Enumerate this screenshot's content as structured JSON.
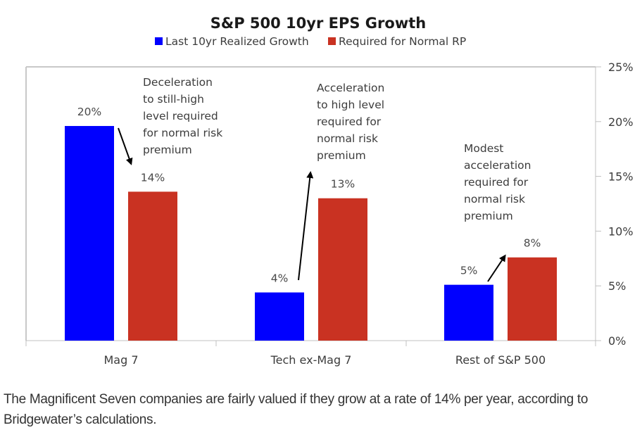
{
  "chart_data": {
    "type": "bar",
    "title": "S&P 500 10yr EPS Growth",
    "xlabel": "",
    "ylabel": "",
    "categories": [
      "Mag 7",
      "Tech ex-Mag 7",
      "Rest of S&P 500"
    ],
    "series": [
      {
        "name": "Last 10yr Realized Growth",
        "color": "#0000ff",
        "values": [
          19.6,
          4.4,
          5.1
        ],
        "labels": [
          "20%",
          "4%",
          "5%"
        ]
      },
      {
        "name": "Required for Normal RP",
        "color": "#c93222",
        "values": [
          13.6,
          13.0,
          7.6
        ],
        "labels": [
          "14%",
          "13%",
          "8%"
        ]
      }
    ],
    "ylim": [
      0,
      25
    ],
    "yticks": [
      0,
      5,
      10,
      15,
      20,
      25
    ],
    "ytick_labels": [
      "0%",
      "5%",
      "10%",
      "15%",
      "20%",
      "25%"
    ],
    "y_axis_side": "right",
    "grid": false,
    "legend_placement": "top-center",
    "annotations": [
      {
        "category": "Mag 7",
        "lines": [
          "Deceleration",
          "to still-high",
          "level required",
          "for normal risk",
          "premium"
        ],
        "arrow": "down from realized to required"
      },
      {
        "category": "Tech ex-Mag 7",
        "lines": [
          "Acceleration",
          "to high level",
          "required for",
          "normal risk",
          "premium"
        ],
        "arrow": "up from realized to required"
      },
      {
        "category": "Rest of S&P 500",
        "lines": [
          "Modest",
          "acceleration",
          "required for",
          "normal risk",
          "premium"
        ],
        "arrow": "up from realized to required"
      }
    ]
  },
  "caption": "The Magnificent Seven companies are fairly valued if they grow at a rate of 14% per year, according to Bridgewater’s calculations."
}
